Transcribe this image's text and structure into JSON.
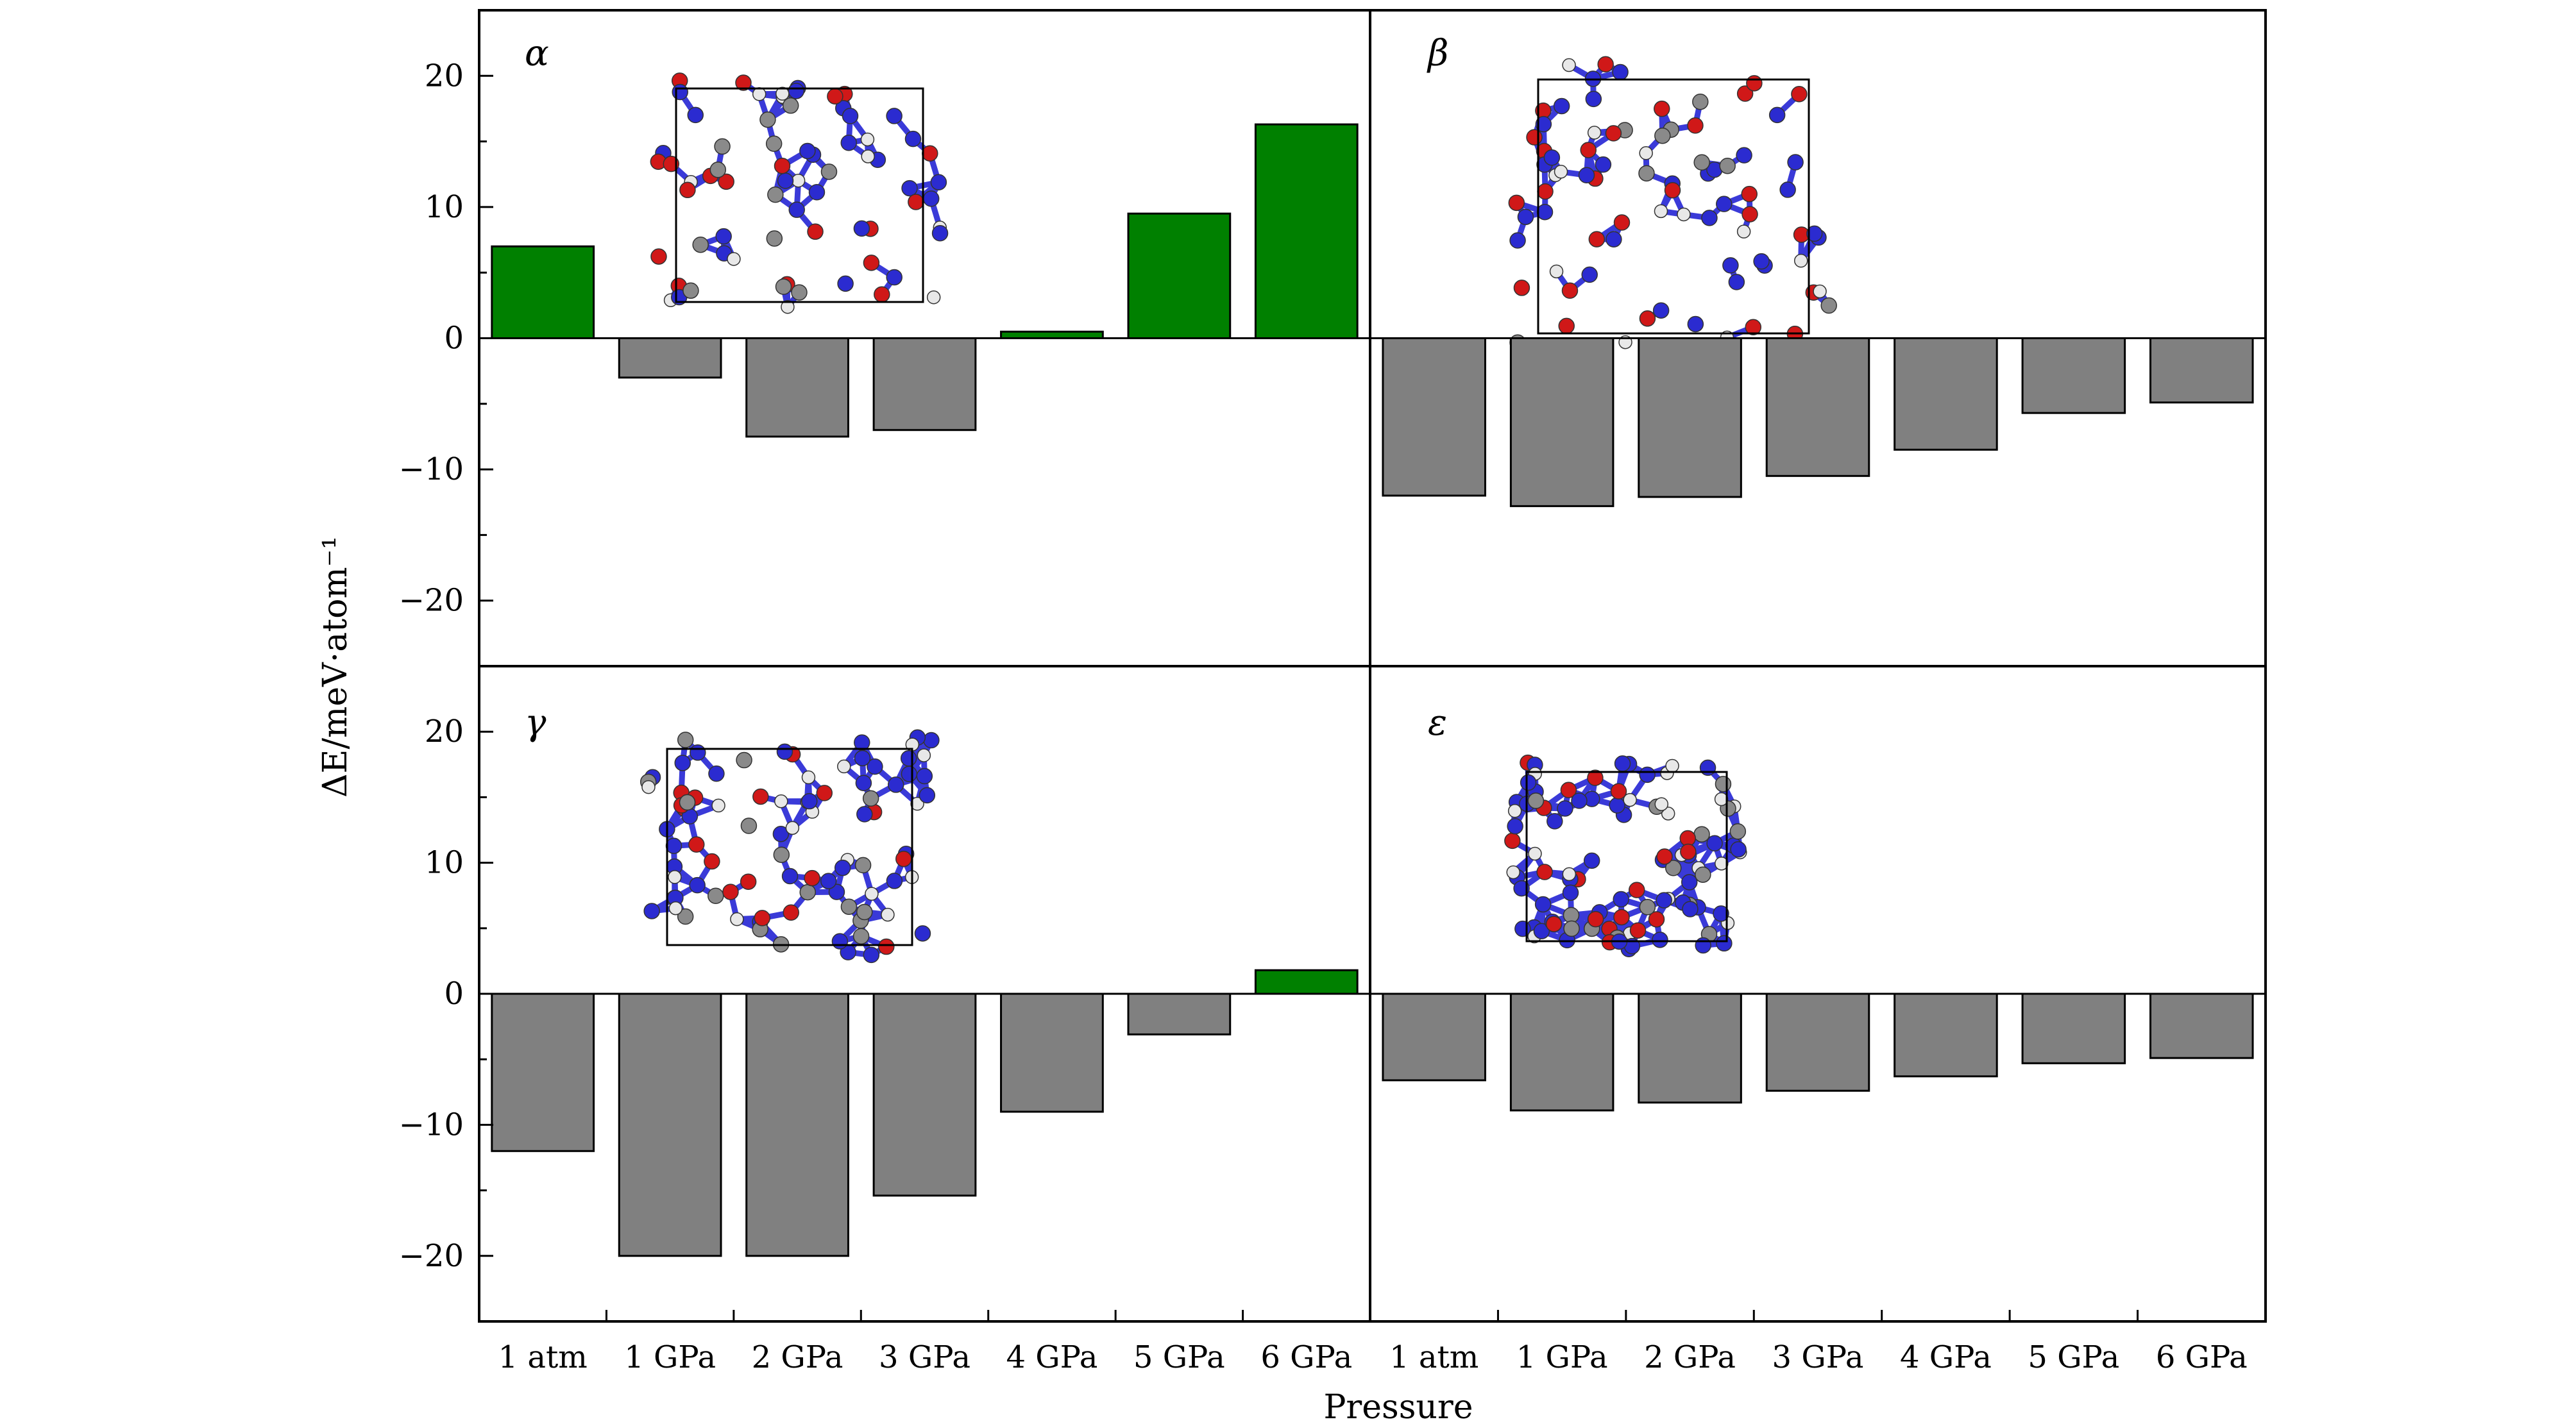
{
  "colors": {
    "positive": "#008000",
    "negative": "#808080",
    "frame": "#000000",
    "atom_n": "#2b2bd0",
    "atom_o": "#d01818",
    "atom_c": "#8a8a8a",
    "atom_h": "#e8e8e8"
  },
  "xlabel": "Pressure",
  "ylabel": "ΔE/meV·atom⁻¹",
  "categories": [
    "1 atm",
    "1 GPa",
    "2 GPa",
    "3 GPa",
    "4 GPa",
    "5 GPa",
    "6 GPa"
  ],
  "yticks": [
    {
      "value": 20,
      "label": "20"
    },
    {
      "value": 10,
      "label": "10"
    },
    {
      "value": 0,
      "label": "0"
    },
    {
      "value": -10,
      "label": "−10"
    },
    {
      "value": -20,
      "label": "−20"
    }
  ],
  "chart_data": [
    {
      "type": "bar",
      "panel_label": "α",
      "inset": "crystal-structure-image",
      "categories": [
        "1 atm",
        "1 GPa",
        "2 GPa",
        "3 GPa",
        "4 GPa",
        "5 GPa",
        "6 GPa"
      ],
      "values": [
        7.0,
        -3.0,
        -7.5,
        -7.0,
        0.5,
        9.5,
        16.3
      ],
      "ylim": [
        -25,
        25
      ]
    },
    {
      "type": "bar",
      "panel_label": "β",
      "inset": "crystal-structure-image",
      "categories": [
        "1 atm",
        "1 GPa",
        "2 GPa",
        "3 GPa",
        "4 GPa",
        "5 GPa",
        "6 GPa"
      ],
      "values": [
        -12.0,
        -12.8,
        -12.1,
        -10.5,
        -8.5,
        -5.7,
        -4.9
      ],
      "ylim": [
        -25,
        25
      ]
    },
    {
      "type": "bar",
      "panel_label": "γ",
      "inset": "crystal-structure-image",
      "categories": [
        "1 atm",
        "1 GPa",
        "2 GPa",
        "3 GPa",
        "4 GPa",
        "5 GPa",
        "6 GPa"
      ],
      "values": [
        -12.0,
        -20.0,
        -20.0,
        -15.4,
        -9.0,
        -3.1,
        1.8
      ],
      "ylim": [
        -25,
        25
      ]
    },
    {
      "type": "bar",
      "panel_label": "ε",
      "inset": "crystal-structure-image",
      "categories": [
        "1 atm",
        "1 GPa",
        "2 GPa",
        "3 GPa",
        "4 GPa",
        "5 GPa",
        "6 GPa"
      ],
      "values": [
        -6.6,
        -8.9,
        -8.3,
        -7.4,
        -6.3,
        -5.3,
        -4.9
      ],
      "ylim": [
        -25,
        25
      ]
    }
  ]
}
